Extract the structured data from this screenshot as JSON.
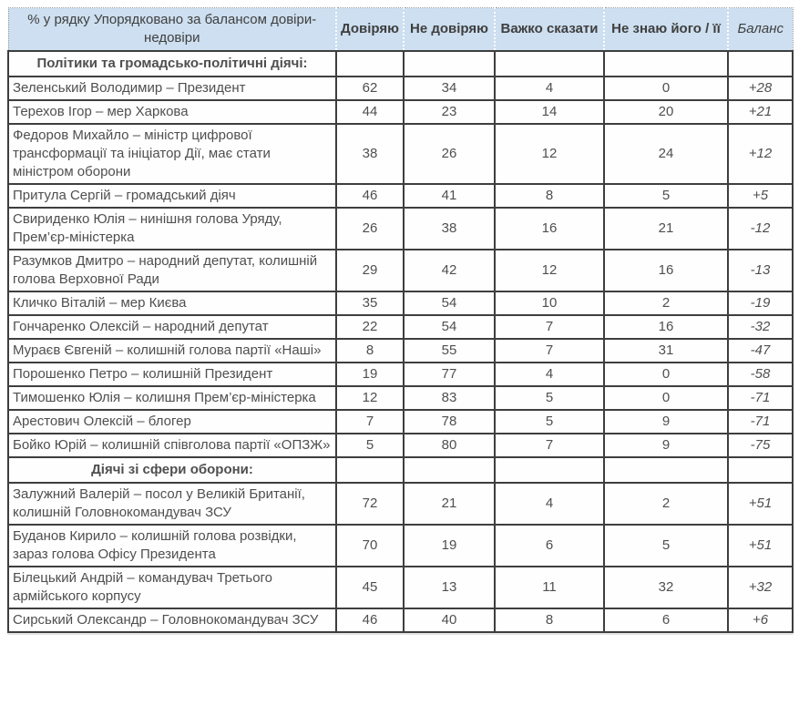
{
  "colors": {
    "header_bg": "#cddff0",
    "header_text": "#3f3f3f",
    "body_text": "#4f4f4f",
    "grid": "#3e3e3e",
    "header_separator": "#ffffff"
  },
  "table": {
    "header": {
      "col_label": "% у рядку Упорядковано за балансом довіри-недовіри",
      "columns": [
        "Довіряю",
        "Не довіряю",
        "Важко сказати",
        "Не знаю його / її",
        "Баланс"
      ]
    },
    "sections": [
      {
        "title": "Політики та громадсько-політичні діячі:",
        "rows": [
          {
            "name": "Зеленський Володимир – Президент",
            "values": [
              "62",
              "34",
              "4",
              "0"
            ],
            "balance": "+28"
          },
          {
            "name": "Терехов Ігор – мер Харкова",
            "values": [
              "44",
              "23",
              "14",
              "20"
            ],
            "balance": "+21"
          },
          {
            "name": "Федоров Михайло – міністр цифрової трансформації та ініціатор Дії, має стати міністром оборони",
            "values": [
              "38",
              "26",
              "12",
              "24"
            ],
            "balance": "+12"
          },
          {
            "name": "Притула Сергій – громадський діяч",
            "values": [
              "46",
              "41",
              "8",
              "5"
            ],
            "balance": "+5"
          },
          {
            "name": "Свириденко Юлія – нинішня голова Уряду, Прем’єр-міністерка",
            "values": [
              "26",
              "38",
              "16",
              "21"
            ],
            "balance": "-12"
          },
          {
            "name": "Разумков Дмитро – народний депутат, колишній голова Верховної Ради",
            "values": [
              "29",
              "42",
              "12",
              "16"
            ],
            "balance": "-13"
          },
          {
            "name": "Кличко Віталій – мер Києва",
            "values": [
              "35",
              "54",
              "10",
              "2"
            ],
            "balance": "-19"
          },
          {
            "name": "Гончаренко Олексій – народний депутат",
            "values": [
              "22",
              "54",
              "7",
              "16"
            ],
            "balance": "-32"
          },
          {
            "name": "Мураєв Євгеній – колишній голова партії «Наші»",
            "values": [
              "8",
              "55",
              "7",
              "31"
            ],
            "balance": "-47"
          },
          {
            "name": "Порошенко Петро – колишній Президент",
            "values": [
              "19",
              "77",
              "4",
              "0"
            ],
            "balance": "-58"
          },
          {
            "name": "Тимошенко Юлія – колишня Прем’єр-міністерка",
            "values": [
              "12",
              "83",
              "5",
              "0"
            ],
            "balance": "-71"
          },
          {
            "name": "Арестович Олексій – блогер",
            "values": [
              "7",
              "78",
              "5",
              "9"
            ],
            "balance": "-71"
          },
          {
            "name": "Бойко Юрій – колишній співголова партії «ОПЗЖ»",
            "values": [
              "5",
              "80",
              "7",
              "9"
            ],
            "balance": "-75"
          }
        ]
      },
      {
        "title": "Діячі зі сфери оборони:",
        "rows": [
          {
            "name": "Залужний Валерій – посол у Великій Британії, колишній Головнокомандувач ЗСУ",
            "values": [
              "72",
              "21",
              "4",
              "2"
            ],
            "balance": "+51"
          },
          {
            "name": "Буданов Кирило – колишній голова розвідки, зараз голова Офісу Президента",
            "values": [
              "70",
              "19",
              "6",
              "5"
            ],
            "balance": "+51"
          },
          {
            "name": "Білецький Андрій – командувач Третього армійського корпусу",
            "values": [
              "45",
              "13",
              "11",
              "32"
            ],
            "balance": "+32"
          },
          {
            "name": "Сирський Олександр – Головнокомандувач ЗСУ",
            "values": [
              "46",
              "40",
              "8",
              "6"
            ],
            "balance": "+6"
          }
        ]
      }
    ]
  }
}
